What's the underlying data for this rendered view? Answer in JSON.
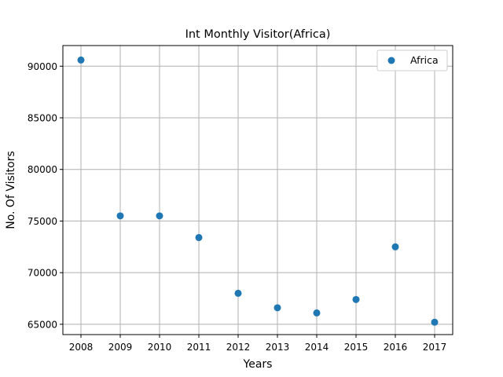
{
  "chart_data": {
    "type": "scatter",
    "title": "Int Monthly Visitor(Africa)",
    "xlabel": "Years",
    "ylabel": "No. Of Visitors",
    "x": [
      "2008",
      "2009",
      "2010",
      "2011",
      "2012",
      "2013",
      "2014",
      "2015",
      "2016",
      "2017"
    ],
    "series": [
      {
        "name": "Africa",
        "color": "#1f77b4",
        "values": [
          90600,
          75500,
          75500,
          73400,
          68000,
          66600,
          66100,
          67400,
          72500,
          65200
        ]
      }
    ],
    "ylim": [
      64000,
      92000
    ],
    "yticks": [
      65000,
      70000,
      75000,
      80000,
      85000,
      90000
    ],
    "grid": true,
    "legend": "top-right"
  }
}
